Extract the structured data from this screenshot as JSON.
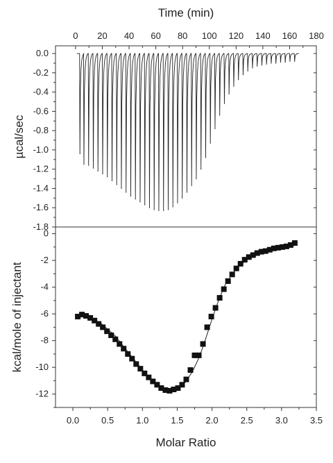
{
  "chart_data": [
    {
      "type": "line",
      "panel": "top",
      "title": "",
      "xlabel": "Time (min)",
      "ylabel": "µcal/sec",
      "xlim": [
        -15,
        180
      ],
      "ylim": [
        -1.8,
        0.08
      ],
      "xticks": [
        0,
        20,
        40,
        60,
        80,
        100,
        120,
        140,
        160,
        180
      ],
      "xtick_labels": [
        "0",
        "20",
        "40",
        "60",
        "80",
        "100",
        "120",
        "140",
        "160",
        "180"
      ],
      "yticks": [
        0.0,
        -0.2,
        -0.4,
        -0.6,
        -0.8,
        -1.0,
        -1.2,
        -1.4,
        -1.6,
        -1.8
      ],
      "ytick_labels": [
        "0.0",
        "-0.2",
        "-0.4",
        "-0.6",
        "-0.8",
        "-1.0",
        "-1.2",
        "-1.4",
        "-1.6",
        "-1.8"
      ],
      "baseline": 0.0,
      "series": [
        {
          "x": [
            3,
            6,
            9.5,
            13,
            16.5,
            20,
            23.5,
            27,
            30.5,
            34,
            37.5,
            41,
            44.5,
            48,
            51.5,
            55,
            58.5,
            62,
            65.5,
            69,
            72.5,
            76,
            79.5,
            83,
            86.5,
            90,
            93.5,
            97,
            100.5,
            104,
            107.5,
            111,
            114.5,
            118,
            121.5,
            125,
            128.5,
            132,
            135.5,
            139,
            142.5,
            146,
            149.5,
            153,
            156.5,
            160,
            163.5
          ],
          "values": [
            -1.04,
            -1.15,
            -1.16,
            -1.19,
            -1.22,
            -1.25,
            -1.28,
            -1.32,
            -1.36,
            -1.4,
            -1.44,
            -1.48,
            -1.51,
            -1.54,
            -1.57,
            -1.6,
            -1.62,
            -1.63,
            -1.63,
            -1.62,
            -1.59,
            -1.55,
            -1.5,
            -1.44,
            -1.37,
            -1.3,
            -1.2,
            -1.08,
            -0.93,
            -0.78,
            -0.64,
            -0.52,
            -0.42,
            -0.34,
            -0.27,
            -0.22,
            -0.18,
            -0.15,
            -0.13,
            -0.12,
            -0.11,
            -0.1,
            -0.1,
            -0.09,
            -0.09,
            -0.08,
            -0.08
          ]
        }
      ]
    },
    {
      "type": "scatter",
      "panel": "bottom",
      "title": "",
      "xlabel": "Molar Ratio",
      "ylabel": "kcal/mole of injectant",
      "xlim": [
        -0.25,
        3.5
      ],
      "ylim": [
        -13,
        0.5
      ],
      "xticks": [
        0.0,
        0.5,
        1.0,
        1.5,
        2.0,
        2.5,
        3.0,
        3.5
      ],
      "xtick_labels": [
        "0.0",
        "0.5",
        "1.0",
        "1.5",
        "2.0",
        "2.5",
        "3.0",
        "3.5"
      ],
      "yticks": [
        0,
        -2,
        -4,
        -6,
        -8,
        -10,
        -12
      ],
      "ytick_labels": [
        "0",
        "-2",
        "-4",
        "-6",
        "-8",
        "-10",
        "-12"
      ],
      "series": [
        {
          "marker": "square",
          "x": [
            0.07,
            0.13,
            0.19,
            0.25,
            0.31,
            0.37,
            0.43,
            0.49,
            0.55,
            0.61,
            0.67,
            0.73,
            0.79,
            0.85,
            0.91,
            0.97,
            1.03,
            1.09,
            1.15,
            1.21,
            1.27,
            1.33,
            1.39,
            1.45,
            1.51,
            1.57,
            1.63,
            1.69,
            1.75,
            1.81,
            1.87,
            1.93,
            1.99,
            2.05,
            2.11,
            2.17,
            2.23,
            2.29,
            2.35,
            2.41,
            2.47,
            2.53,
            2.59,
            2.65,
            2.71,
            2.77,
            2.83,
            2.89,
            2.95,
            3.01,
            3.07,
            3.13,
            3.19
          ],
          "values": [
            -6.2,
            -6.05,
            -6.15,
            -6.3,
            -6.5,
            -6.75,
            -7.0,
            -7.3,
            -7.6,
            -7.9,
            -8.25,
            -8.6,
            -9.0,
            -9.35,
            -9.75,
            -10.1,
            -10.45,
            -10.75,
            -11.05,
            -11.3,
            -11.55,
            -11.7,
            -11.75,
            -11.65,
            -11.55,
            -11.3,
            -10.9,
            -10.2,
            -9.1,
            -9.1,
            -8.25,
            -7.0,
            -6.2,
            -5.55,
            -4.8,
            -4.15,
            -3.55,
            -3.05,
            -2.6,
            -2.25,
            -1.95,
            -1.75,
            -1.6,
            -1.45,
            -1.35,
            -1.3,
            -1.2,
            -1.1,
            -1.05,
            -1.0,
            -0.95,
            -0.85,
            -0.7
          ]
        },
        {
          "name": "",
          "style": "fit-line",
          "x": [
            0.07,
            0.2,
            0.4,
            0.6,
            0.8,
            1.0,
            1.2,
            1.35,
            1.5,
            1.62,
            1.72,
            1.82,
            1.9,
            2.0,
            2.1,
            2.2,
            2.35,
            2.5,
            2.7,
            2.9,
            3.1,
            3.22
          ],
          "values": [
            -6.1,
            -6.1,
            -6.7,
            -7.6,
            -8.9,
            -10.2,
            -11.25,
            -11.65,
            -11.6,
            -11.1,
            -10.3,
            -9.2,
            -8.0,
            -6.4,
            -4.9,
            -3.7,
            -2.6,
            -1.95,
            -1.45,
            -1.15,
            -0.95,
            -0.85
          ]
        }
      ]
    }
  ]
}
